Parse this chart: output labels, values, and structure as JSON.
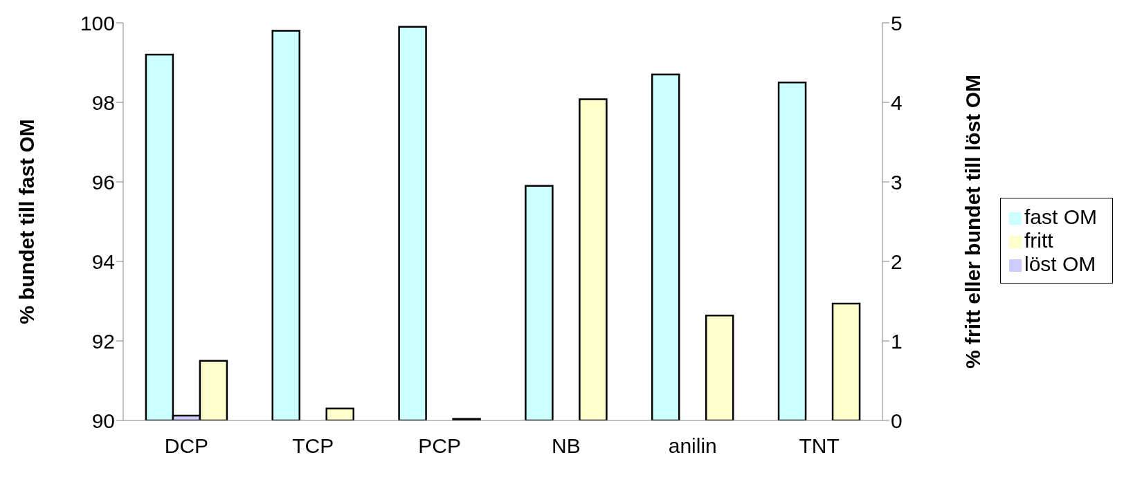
{
  "chart_data": {
    "type": "bar",
    "categories": [
      "DCP",
      "TCP",
      "PCP",
      "NB",
      "anilin",
      "TNT"
    ],
    "series": [
      {
        "name": "fast OM",
        "color": "#ccffff",
        "values": [
          99.2,
          99.8,
          99.9,
          95.9,
          98.7,
          98.5
        ]
      },
      {
        "name": "löst OM",
        "color": "#ccccff",
        "values": [
          0.06,
          0,
          0,
          0,
          0,
          0
        ],
        "axis": "y2"
      },
      {
        "name": "fritt",
        "color": "#ffffcc",
        "values": [
          0.75,
          0.15,
          0.02,
          4.04,
          1.32,
          1.47
        ],
        "axis": "y2"
      }
    ],
    "ylabel": "% bundet till fast OM",
    "y2label": "% fritt eller bundet till löst OM",
    "ylim": [
      90,
      100
    ],
    "yticks": [
      90,
      92,
      94,
      96,
      98,
      100
    ],
    "y2lim": [
      0,
      5
    ],
    "y2ticks": [
      0,
      1,
      2,
      3,
      4,
      5
    ],
    "grid": false,
    "legend": "right"
  }
}
